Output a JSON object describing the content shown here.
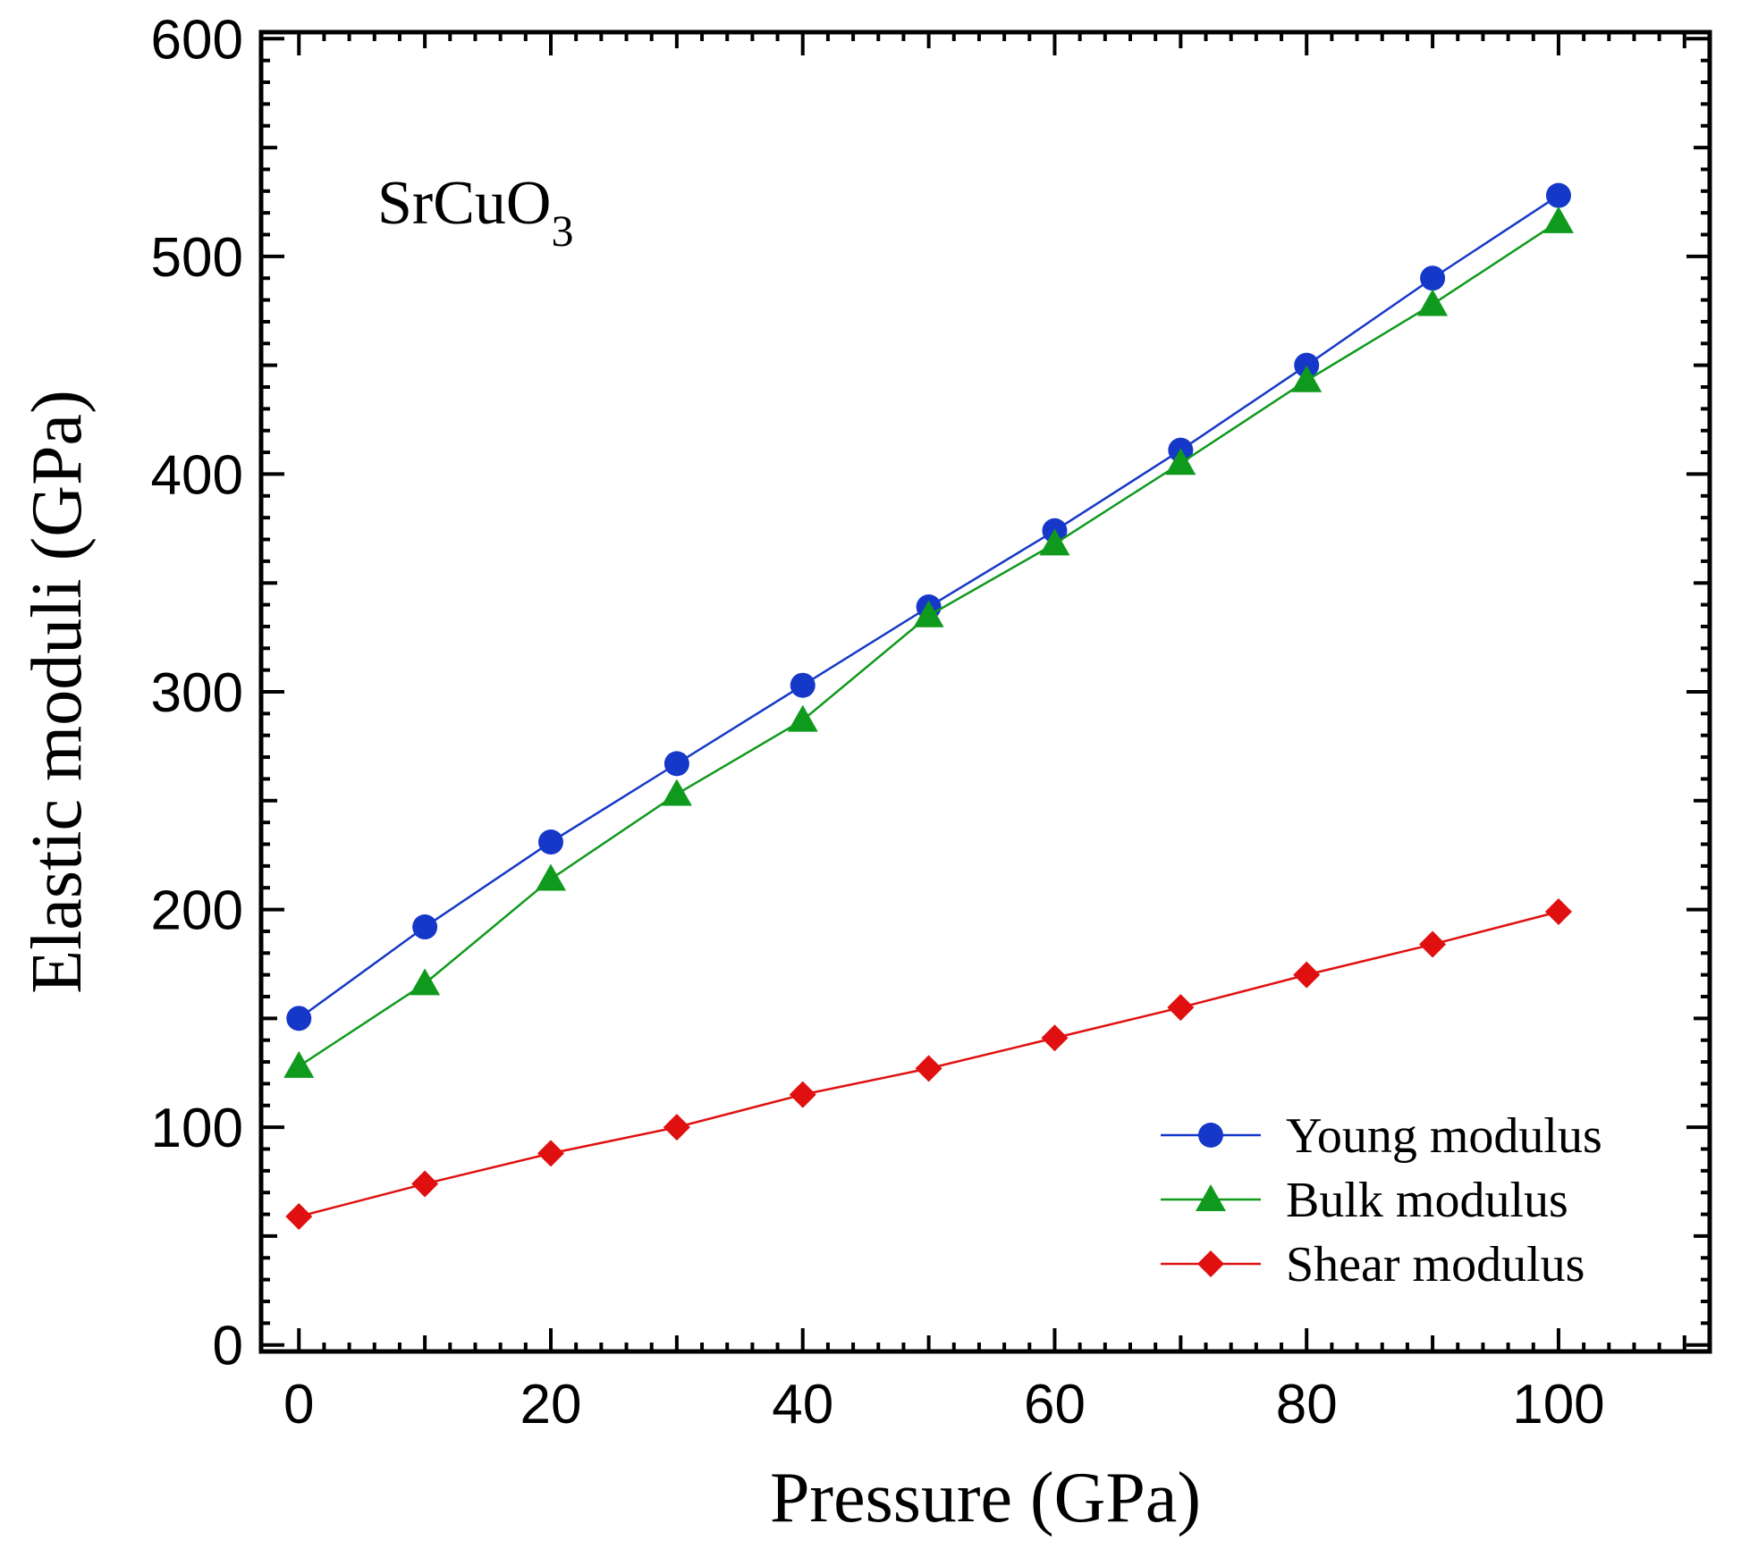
{
  "chart_data": {
    "type": "line",
    "title": "",
    "xlabel": "Pressure (GPa)",
    "ylabel": "Elastic moduli (GPa)",
    "xlim": [
      -3,
      112
    ],
    "ylim": [
      -3,
      603
    ],
    "x_ticks": [
      0,
      20,
      40,
      60,
      80,
      100
    ],
    "y_ticks": [
      0,
      100,
      200,
      300,
      400,
      500,
      600
    ],
    "x": [
      0,
      10,
      20,
      30,
      40,
      50,
      60,
      70,
      80,
      90,
      100
    ],
    "annotation": {
      "base": "SrCuO",
      "subscript": "3"
    },
    "legend_position": "bottom-right",
    "grid": false,
    "series": [
      {
        "name": "Young modulus",
        "color": "#1538c8",
        "marker": "circle",
        "values": [
          150,
          192,
          231,
          267,
          303,
          339,
          374,
          411,
          450,
          490,
          528
        ]
      },
      {
        "name": "Bulk modulus",
        "color": "#0f9a1d",
        "marker": "triangle",
        "values": [
          128,
          166,
          214,
          253,
          287,
          335,
          368,
          405,
          443,
          478,
          516
        ]
      },
      {
        "name": "Shear modulus",
        "color": "#e01010",
        "marker": "diamond",
        "values": [
          59,
          74,
          88,
          100,
          115,
          127,
          141,
          155,
          170,
          184,
          199
        ]
      }
    ]
  }
}
